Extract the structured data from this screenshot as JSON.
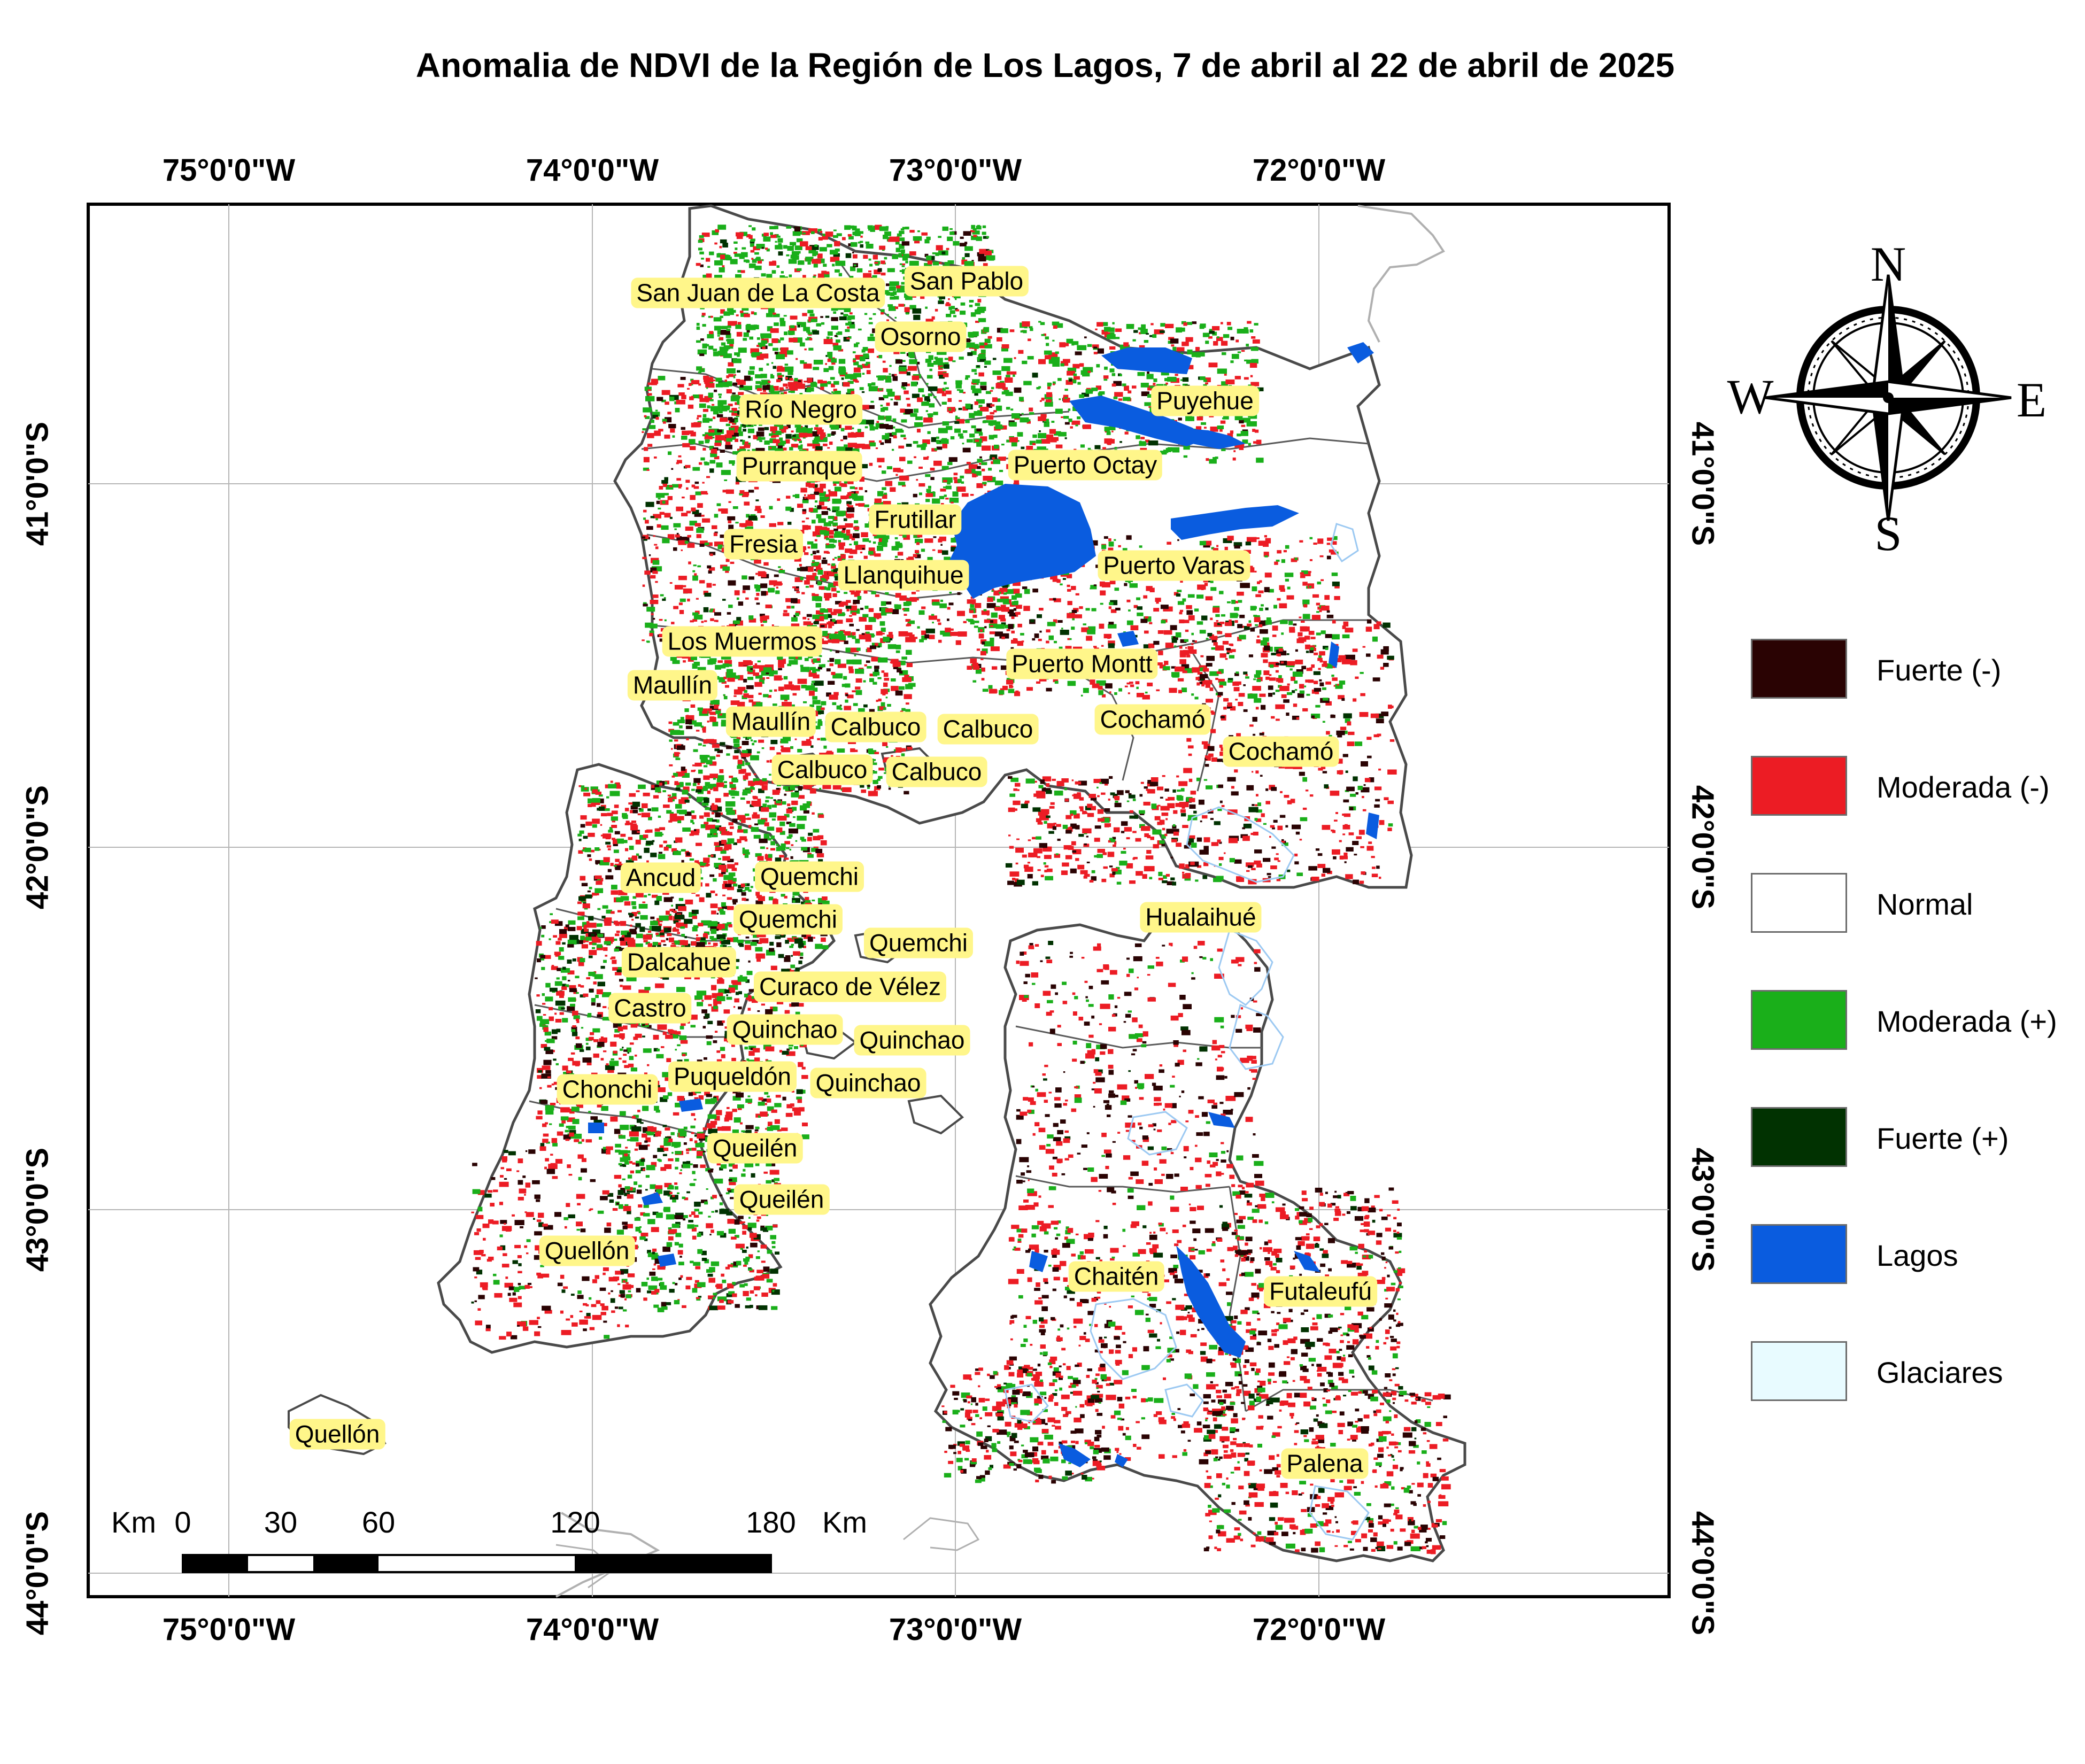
{
  "title": "Anomalia de NDVI de la Región de Los Lagos, 7 de abril al 22 de abril de 2025",
  "grid": {
    "longitudes": [
      "75°0'0\"W",
      "74°0'0\"W",
      "73°0'0\"W",
      "72°0'0\"W"
    ],
    "latitudes": [
      "41°0'0\"S",
      "42°0'0\"S",
      "43°0'0\"S",
      "44°0'0\"S"
    ]
  },
  "places": [
    "San Juan de La Costa",
    "San Pablo",
    "Osorno",
    "Puyehue",
    "Río Negro",
    "Purranque",
    "Puerto Octay",
    "Frutillar",
    "Fresia",
    "Llanquihue",
    "Puerto Varas",
    "Los Muermos",
    "Puerto Montt",
    "Maullín",
    "Maullín",
    "Calbuco",
    "Calbuco",
    "Cochamó",
    "Cochamó",
    "Calbuco",
    "Calbuco",
    "Ancud",
    "Quemchi",
    "Quemchi",
    "Quemchi",
    "Hualaihué",
    "Dalcahue",
    "Curaco de Vélez",
    "Castro",
    "Quinchao",
    "Quinchao",
    "Puqueldón",
    "Quinchao",
    "Chonchi",
    "Queilén",
    "Queilén",
    "Quellón",
    "Chaitén",
    "Futaleufú",
    "Palena",
    "Quellón"
  ],
  "legend": [
    {
      "label": "Fuerte (-)",
      "color": "#2a0303"
    },
    {
      "label": "Moderada (-)",
      "color": "#ec1c24"
    },
    {
      "label": "Normal",
      "color": "#ffffff"
    },
    {
      "label": "Moderada (+)",
      "color": "#1aaf1a"
    },
    {
      "label": "Fuerte (+)",
      "color": "#013201"
    },
    {
      "label": "Lagos",
      "color": "#0a5cdf"
    },
    {
      "label": "Glaciares",
      "color": "#e8fbff"
    }
  ],
  "compass": {
    "n": "N",
    "s": "S",
    "e": "E",
    "w": "W"
  },
  "scale": {
    "unit": "Km",
    "ticks": [
      "0",
      "30",
      "60",
      "120",
      "180"
    ]
  }
}
